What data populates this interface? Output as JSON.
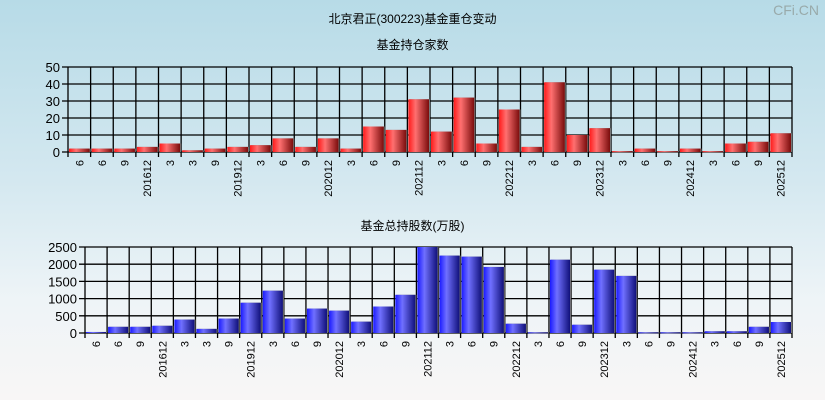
{
  "watermark": "CFi.CN",
  "title": "北京君正(300223)基金重仓变动",
  "chart_data": [
    {
      "type": "bar",
      "title": "基金持仓家数",
      "ylim": [
        0,
        50
      ],
      "yticks": [
        0,
        10,
        20,
        30,
        40,
        50
      ],
      "categories": [
        "6",
        "6",
        "9",
        "201612",
        "3",
        "3",
        "9",
        "201912",
        "3",
        "6",
        "9",
        "202012",
        "3",
        "6",
        "9",
        "202112",
        "3",
        "6",
        "9",
        "202212",
        "3",
        "6",
        "9",
        "202312",
        "3",
        "6",
        "9",
        "202412",
        "3",
        "6",
        "9",
        "202512"
      ],
      "values": [
        2,
        2,
        2,
        3,
        5,
        1,
        2,
        3,
        4,
        8,
        3,
        8,
        2,
        15,
        13,
        31,
        12,
        32,
        5,
        25,
        3,
        41,
        10,
        14,
        0.5,
        2,
        0.5,
        2,
        0.5,
        5,
        6,
        11
      ],
      "color": "#e02020",
      "grid": true
    },
    {
      "type": "bar",
      "title": "基金总持股数(万股)",
      "ylim": [
        0,
        2500
      ],
      "yticks": [
        0,
        500,
        1000,
        1500,
        2000,
        2500
      ],
      "categories": [
        "6",
        "6",
        "9",
        "201612",
        "3",
        "3",
        "9",
        "201912",
        "3",
        "6",
        "9",
        "202012",
        "3",
        "6",
        "9",
        "202112",
        "3",
        "6",
        "9",
        "202212",
        "3",
        "6",
        "9",
        "202312",
        "3",
        "6",
        "9",
        "202412",
        "3",
        "6",
        "9",
        "202512"
      ],
      "values": [
        30,
        180,
        180,
        210,
        390,
        120,
        420,
        880,
        1230,
        420,
        710,
        650,
        330,
        770,
        1110,
        2500,
        2250,
        2220,
        1920,
        270,
        20,
        2130,
        240,
        1840,
        1660,
        20,
        20,
        20,
        50,
        50,
        180,
        320
      ],
      "color": "#2a2ae8",
      "grid": true
    }
  ]
}
